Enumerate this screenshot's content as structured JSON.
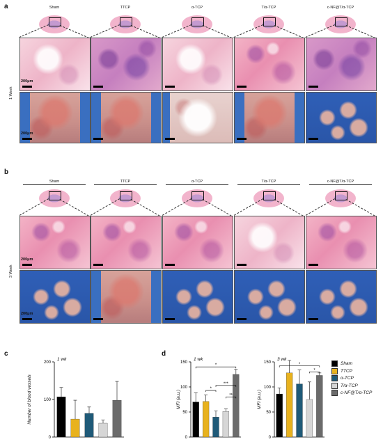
{
  "panel_a": {
    "letter": "a",
    "columns": [
      "Sham",
      "TTCP",
      "α-TCP",
      "T/α-TCP",
      "c-NF@T/α-TCP"
    ],
    "row_label": "1 Week",
    "scale_top": "200μm",
    "scale_bottom": "200μm"
  },
  "panel_b": {
    "letter": "b",
    "columns": [
      "Sham",
      "TTCP",
      "α-TCP",
      "T/α-TCP",
      "c-NF@T/α-TCP"
    ],
    "row_label": "3 Week",
    "scale_top": "200μm",
    "scale_bottom": "200μm"
  },
  "panel_c": {
    "letter": "c"
  },
  "panel_d": {
    "letter": "d"
  },
  "legend": [
    {
      "label": "Sham",
      "color": "#000000"
    },
    {
      "label": "TTCP",
      "color": "#e8b21e"
    },
    {
      "label": "α-TCP",
      "color": "#1f5a78"
    },
    {
      "label": "T/α-TCP",
      "color": "#d6d6d6"
    },
    {
      "label": "c-NF@T/α-TCP",
      "color": "#6b6b6b"
    }
  ],
  "chart_data": [
    {
      "type": "bar",
      "subtitle": "1 wk",
      "ylabel": "Number of blood vessels",
      "categories": [
        "Sham",
        "TTCP",
        "α-TCP",
        "T/α-TCP",
        "c-NF@T/α-TCP"
      ],
      "values": [
        107,
        48,
        63,
        37,
        98
      ],
      "errors": [
        25,
        50,
        17,
        8,
        50
      ],
      "ylim": [
        0,
        200
      ],
      "yticks": [
        0,
        100,
        200
      ],
      "colors": [
        "#000000",
        "#e8b21e",
        "#1f5a78",
        "#d6d6d6",
        "#6b6b6b"
      ]
    },
    {
      "type": "bar",
      "subtitle": "1 wk",
      "ylabel": "MFI (a.u.)",
      "categories": [
        "Sham",
        "TTCP",
        "α-TCP",
        "T/α-TCP",
        "c-NF@T/α-TCP"
      ],
      "values": [
        70,
        71,
        40,
        51,
        125
      ],
      "errors": [
        18,
        13,
        12,
        5,
        10
      ],
      "ylim": [
        0,
        150
      ],
      "yticks": [
        0,
        50,
        100,
        150
      ],
      "colors": [
        "#000000",
        "#e8b21e",
        "#1f5a78",
        "#d6d6d6",
        "#6b6b6b"
      ],
      "significance": [
        {
          "from": 0,
          "to": 4,
          "label": "*",
          "level": 140
        },
        {
          "from": 1,
          "to": 2,
          "label": "*",
          "level": 93
        },
        {
          "from": 2,
          "to": 4,
          "label": "***",
          "level": 103
        },
        {
          "from": 3,
          "to": 4,
          "label": "**",
          "level": 80
        }
      ]
    },
    {
      "type": "bar",
      "subtitle": "3 wk",
      "ylabel": "MFI (a.u.)",
      "categories": [
        "Sham",
        "TTCP",
        "α-TCP",
        "T/α-TCP",
        "c-NF@T/α-TCP"
      ],
      "values": [
        86,
        128,
        106,
        75,
        123
      ],
      "errors": [
        12,
        25,
        28,
        35,
        5
      ],
      "ylim": [
        0,
        150
      ],
      "yticks": [
        0,
        50,
        100,
        150
      ],
      "colors": [
        "#000000",
        "#e8b21e",
        "#1f5a78",
        "#d6d6d6",
        "#6b6b6b"
      ],
      "significance": [
        {
          "from": 0,
          "to": 4,
          "label": "*",
          "level": 142
        },
        {
          "from": 3,
          "to": 4,
          "label": "*",
          "level": 130
        }
      ]
    }
  ]
}
